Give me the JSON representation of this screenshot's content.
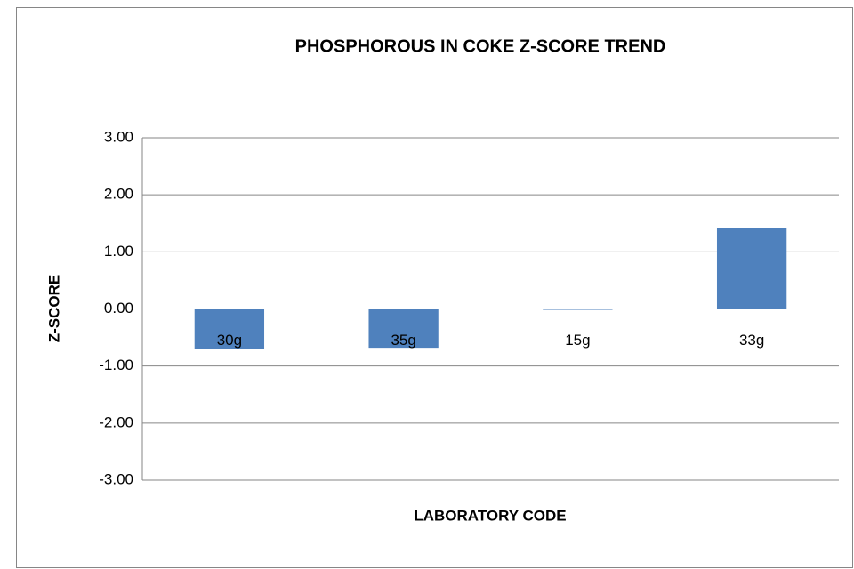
{
  "chart_data": {
    "type": "bar",
    "title": "PHOSPHOROUS IN COKE Z-SCORE TREND",
    "xlabel": "LABORATORY CODE",
    "ylabel": "Z-SCORE",
    "categories": [
      "30g",
      "35g",
      "15g",
      "33g"
    ],
    "values": [
      -0.7,
      -0.68,
      -0.01,
      1.42
    ],
    "color": "#4f81bd",
    "ylim": [
      -3,
      3
    ],
    "yticks": [
      {
        "value": -3,
        "label": "-3.00"
      },
      {
        "value": -2,
        "label": "-2.00"
      },
      {
        "value": -1,
        "label": "-1.00"
      },
      {
        "value": 0,
        "label": "0.00"
      },
      {
        "value": 1,
        "label": "1.00"
      },
      {
        "value": 2,
        "label": "2.00"
      },
      {
        "value": 3,
        "label": "3.00"
      }
    ],
    "grid": true
  }
}
